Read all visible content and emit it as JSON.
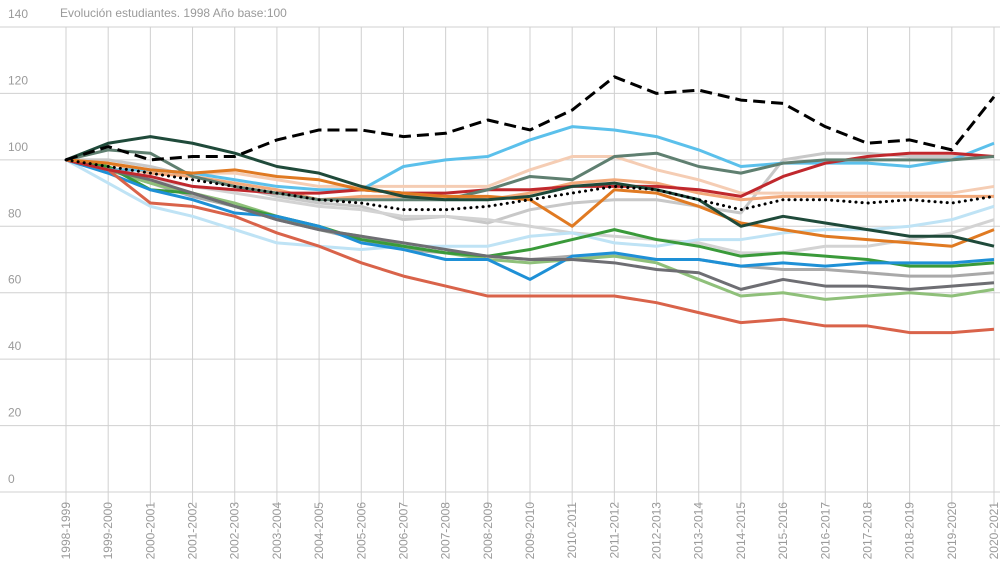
{
  "chart_data": {
    "type": "line",
    "title": "Evolución estudiantes. 1998 Año base:100",
    "categories": [
      "1998-1999",
      "1999-2000",
      "2000-2001",
      "2001-2002",
      "2002-2003",
      "2003-2004",
      "2004-2005",
      "2005-2006",
      "2006-2007",
      "2007-2008",
      "2008-2009",
      "2009-2010",
      "2010-2011",
      "2011-2012",
      "2012-2013",
      "2013-2014",
      "2014-2015",
      "2015-2016",
      "2016-2017",
      "2017-2018",
      "2018-2019",
      "2019-2020",
      "2020-2021"
    ],
    "ylim": [
      0,
      140
    ],
    "yticks": [
      0,
      20,
      40,
      60,
      80,
      100,
      120,
      140
    ],
    "grid": true,
    "series": [
      {
        "color": "#c8c8c8",
        "values": [
          100,
          100,
          98,
          95,
          92,
          89,
          87,
          86,
          82,
          83,
          81,
          85,
          87,
          88,
          88,
          86,
          84,
          100,
          102,
          102,
          101,
          101,
          101
        ]
      },
      {
        "color": "#d3d3d3",
        "values": [
          100,
          98,
          94,
          92,
          90,
          88,
          86,
          85,
          83,
          83,
          82,
          80,
          78,
          77,
          76,
          75,
          72,
          72,
          74,
          74,
          76,
          78,
          82
        ]
      },
      {
        "color": "#bfe3f5",
        "values": [
          100,
          93,
          86,
          83,
          79,
          75,
          74,
          73,
          74,
          74,
          74,
          77,
          78,
          75,
          74,
          76,
          76,
          78,
          79,
          79,
          80,
          82,
          86
        ]
      },
      {
        "color": "#f5cdb4",
        "values": [
          100,
          99,
          97,
          96,
          96,
          94,
          92,
          92,
          92,
          92,
          92,
          97,
          101,
          101,
          97,
          94,
          90,
          90,
          90,
          90,
          90,
          90,
          92
        ]
      },
      {
        "color": "#f2a97a",
        "values": [
          100,
          99,
          96,
          95,
          93,
          91,
          88,
          89,
          89,
          89,
          88,
          90,
          93,
          94,
          93,
          90,
          88,
          89,
          89,
          89,
          89,
          89,
          89
        ]
      },
      {
        "color": "#a9a9a9",
        "values": [
          100,
          97,
          93,
          89,
          86,
          82,
          79,
          76,
          73,
          72,
          71,
          70,
          71,
          71,
          70,
          70,
          68,
          67,
          67,
          66,
          65,
          65,
          66
        ]
      },
      {
        "color": "#8fc07a",
        "values": [
          100,
          97,
          93,
          90,
          87,
          83,
          79,
          77,
          74,
          72,
          70,
          69,
          70,
          71,
          69,
          64,
          59,
          60,
          58,
          59,
          60,
          59,
          61
        ]
      },
      {
        "color": "#3a9a3a",
        "values": [
          100,
          98,
          91,
          90,
          86,
          83,
          80,
          76,
          74,
          72,
          71,
          73,
          76,
          79,
          76,
          74,
          71,
          72,
          71,
          70,
          68,
          68,
          69
        ]
      },
      {
        "color": "#1e90d6",
        "values": [
          100,
          96,
          91,
          88,
          84,
          83,
          80,
          75,
          73,
          70,
          70,
          64,
          71,
          72,
          70,
          70,
          68,
          69,
          68,
          69,
          69,
          69,
          70
        ]
      },
      {
        "color": "#6e6e73",
        "values": [
          100,
          97,
          94,
          90,
          86,
          82,
          79,
          77,
          75,
          73,
          71,
          70,
          70,
          69,
          67,
          66,
          61,
          64,
          62,
          62,
          61,
          62,
          63
        ]
      },
      {
        "color": "#d9634a",
        "values": [
          100,
          97,
          87,
          86,
          83,
          78,
          74,
          69,
          65,
          62,
          59,
          59,
          59,
          59,
          57,
          54,
          51,
          52,
          50,
          50,
          48,
          48,
          49
        ]
      },
      {
        "color": "#5bc0eb",
        "values": [
          100,
          97,
          97,
          96,
          94,
          92,
          91,
          91,
          98,
          100,
          101,
          106,
          110,
          109,
          107,
          103,
          98,
          99,
          99,
          99,
          98,
          100,
          105
        ]
      },
      {
        "color": "#c0282d",
        "values": [
          100,
          97,
          95,
          92,
          91,
          90,
          90,
          91,
          90,
          90,
          91,
          91,
          92,
          92,
          92,
          91,
          89,
          95,
          99,
          101,
          102,
          102,
          101
        ]
      },
      {
        "color": "#5f7f70",
        "values": [
          100,
          103,
          102,
          95,
          92,
          90,
          88,
          88,
          88,
          88,
          91,
          95,
          94,
          101,
          102,
          98,
          96,
          99,
          100,
          100,
          100,
          100,
          101
        ]
      },
      {
        "color": "#e07a22",
        "values": [
          100,
          99,
          97,
          96,
          97,
          95,
          94,
          91,
          90,
          89,
          89,
          88,
          80,
          91,
          90,
          86,
          81,
          79,
          77,
          76,
          75,
          74,
          79
        ]
      },
      {
        "color": "#1f4a3a",
        "values": [
          100,
          105,
          107,
          105,
          102,
          98,
          96,
          92,
          89,
          88,
          88,
          89,
          92,
          93,
          91,
          88,
          80,
          83,
          81,
          79,
          77,
          77,
          74
        ]
      },
      {
        "color": "#000000",
        "style": "dotted",
        "values": [
          100,
          98,
          96,
          94,
          92,
          90,
          88,
          87,
          85,
          85,
          86,
          88,
          90,
          92,
          91,
          88,
          85,
          88,
          88,
          87,
          88,
          87,
          89
        ]
      },
      {
        "color": "#000000",
        "style": "dashed",
        "values": [
          100,
          104,
          100,
          101,
          101,
          106,
          109,
          109,
          107,
          108,
          112,
          109,
          115,
          125,
          120,
          121,
          118,
          117,
          110,
          105,
          106,
          103,
          119
        ]
      }
    ]
  }
}
